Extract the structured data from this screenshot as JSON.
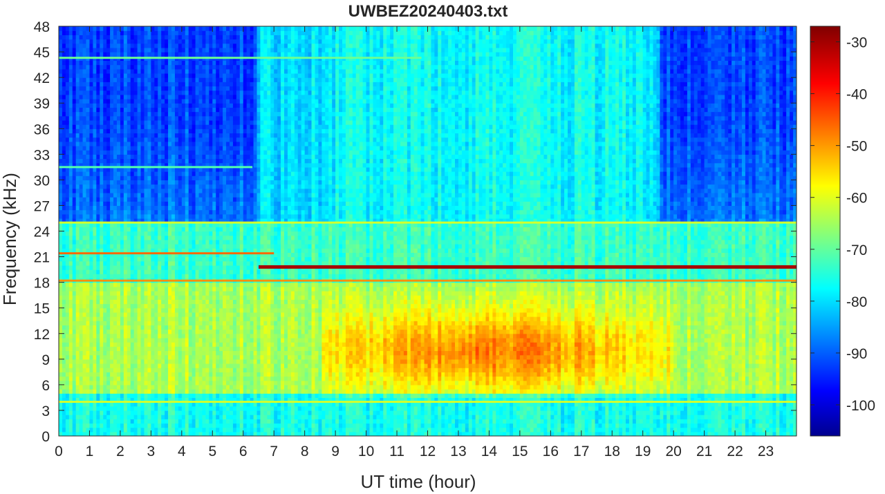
{
  "chart_data": {
    "type": "heatmap",
    "title": "UWBEZ20240403.txt",
    "xlabel": "UT time (hour)",
    "ylabel": "Frequency (kHz)",
    "xlim": [
      0,
      24
    ],
    "ylim": [
      0,
      48
    ],
    "x_ticks": [
      0,
      1,
      2,
      3,
      4,
      5,
      6,
      7,
      8,
      9,
      10,
      11,
      12,
      13,
      14,
      15,
      16,
      17,
      18,
      19,
      20,
      21,
      22,
      23
    ],
    "y_ticks": [
      0,
      3,
      6,
      9,
      12,
      15,
      18,
      21,
      24,
      27,
      30,
      33,
      36,
      39,
      42,
      45,
      48
    ],
    "colorbar": {
      "colormap": "jet",
      "clim": [
        -106,
        -27
      ],
      "ticks": [
        -100,
        -90,
        -80,
        -70,
        -60,
        -50,
        -40,
        -30
      ]
    },
    "features": {
      "strong_lines": [
        {
          "freq_khz": 19.8,
          "t_start": 6.5,
          "t_end": 24,
          "level_db": -30
        },
        {
          "freq_khz": 21.4,
          "t_start": 0,
          "t_end": 7,
          "level_db": -45
        },
        {
          "freq_khz": 18.2,
          "t_start": 0,
          "t_end": 24,
          "level_db": -48
        },
        {
          "freq_khz": 25.0,
          "t_start": 0,
          "t_end": 24,
          "level_db": -60
        },
        {
          "freq_khz": 4.0,
          "t_start": 0,
          "t_end": 24,
          "level_db": -60
        },
        {
          "freq_khz": 44.3,
          "t_start": 0,
          "t_end": 11.8,
          "level_db": -68
        },
        {
          "freq_khz": 31.5,
          "t_start": 0,
          "t_end": 6.3,
          "level_db": -70
        }
      ],
      "noise_band": {
        "freq_range_khz": [
          5,
          17
        ],
        "peak_hours": [
          9.5,
          19
        ],
        "level_db": -52
      }
    }
  }
}
